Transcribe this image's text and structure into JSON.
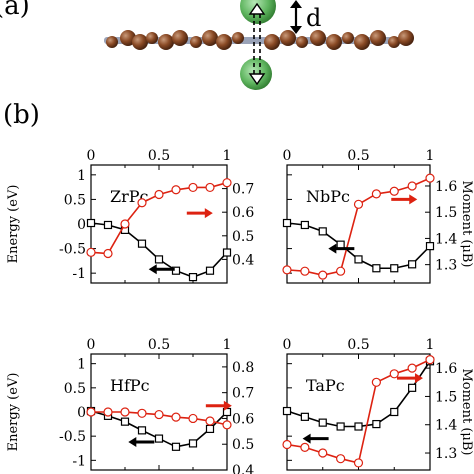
{
  "panel_a": {
    "label": "(a)",
    "distance_label": "d"
  },
  "panel_b": {
    "label": "(b)"
  },
  "chart_data": [
    {
      "type": "line",
      "panel_label": "ZrPc",
      "ylabel_left": "Energy (eV)",
      "ylabel_right": "",
      "xlim": [
        0,
        1
      ],
      "x_ticks": [
        "0",
        "0.5",
        "1"
      ],
      "ylim_left": [
        -1.2,
        1.2
      ],
      "ylim_right": [
        0.3,
        0.8
      ],
      "left_ticks": [
        1,
        0.5,
        0,
        -0.5,
        -1
      ],
      "left_tick_labels": [
        "1",
        "0.5",
        "0",
        "-0.5",
        "-1"
      ],
      "right_ticks": [
        0.7,
        0.6,
        0.5,
        0.4
      ],
      "right_tick_labels": [
        "0.7",
        "0.6",
        "0.5",
        "0.4"
      ],
      "series": [
        {
          "axis": "left",
          "marker": "square",
          "color": "#000000",
          "x": [
            0,
            0.125,
            0.25,
            0.375,
            0.5,
            0.625,
            0.75,
            0.875,
            1.0
          ],
          "values": [
            0.02,
            -0.02,
            -0.12,
            -0.4,
            -0.72,
            -0.95,
            -1.08,
            -0.95,
            -0.58
          ]
        },
        {
          "axis": "right",
          "marker": "circle",
          "color": "#dd2211",
          "x": [
            0,
            0.125,
            0.25,
            0.375,
            0.5,
            0.625,
            0.75,
            0.875,
            1.0
          ],
          "values": [
            0.43,
            0.425,
            0.55,
            0.64,
            0.675,
            0.695,
            0.705,
            0.705,
            0.725
          ]
        }
      ],
      "arrows": [
        {
          "color": "#dd2211",
          "direction": "right",
          "x": 0.8,
          "y_left": 0.22
        },
        {
          "color": "#000000",
          "direction": "left",
          "x": 0.52,
          "y_left": -0.92
        }
      ]
    },
    {
      "type": "line",
      "panel_label": "NbPc",
      "ylabel_left": "",
      "ylabel_right": "Moment (μB)",
      "xlim": [
        0,
        1
      ],
      "x_ticks": [
        "0",
        "0.5",
        "1"
      ],
      "ylim_left": [
        -1.2,
        1.2
      ],
      "ylim_right": [
        1.23,
        1.68
      ],
      "left_ticks": [
        1,
        0.5,
        0,
        -0.5,
        -1
      ],
      "left_tick_labels": [
        "",
        "",
        "",
        "",
        ""
      ],
      "right_ticks": [
        1.6,
        1.5,
        1.4,
        1.3
      ],
      "right_tick_labels": [
        "1.6",
        "1.5",
        "1.4",
        "1.3"
      ],
      "series": [
        {
          "axis": "left",
          "marker": "square",
          "color": "#000000",
          "x": [
            0,
            0.125,
            0.25,
            0.375,
            0.5,
            0.625,
            0.75,
            0.875,
            1.0
          ],
          "values": [
            0.02,
            -0.02,
            -0.15,
            -0.42,
            -0.72,
            -0.9,
            -0.9,
            -0.82,
            -0.45
          ]
        },
        {
          "axis": "right",
          "marker": "circle",
          "color": "#dd2211",
          "x": [
            0,
            0.125,
            0.25,
            0.375,
            0.5,
            0.625,
            0.75,
            0.875,
            1.0
          ],
          "values": [
            1.28,
            1.275,
            1.26,
            1.275,
            1.53,
            1.57,
            1.58,
            1.6,
            1.63
          ]
        }
      ],
      "arrows": [
        {
          "color": "#dd2211",
          "direction": "right",
          "x": 0.82,
          "y_left": 0.5
        },
        {
          "color": "#000000",
          "direction": "left",
          "x": 0.38,
          "y_left": -0.5
        }
      ]
    },
    {
      "type": "line",
      "panel_label": "HfPc",
      "ylabel_left": "Energy (eV)",
      "ylabel_right": "",
      "xlim": [
        0,
        1
      ],
      "x_ticks": [
        "0",
        "0.5",
        "1"
      ],
      "ylim_left": [
        -1.2,
        1.2
      ],
      "ylim_right": [
        0.4,
        0.85
      ],
      "left_ticks": [
        1,
        0.5,
        0,
        -0.5,
        -1
      ],
      "left_tick_labels": [
        "1",
        "0.5",
        "0",
        "-0.5",
        "-1"
      ],
      "right_ticks": [
        0.8,
        0.7,
        0.6,
        0.5,
        0.4
      ],
      "right_tick_labels": [
        "0.8",
        "0.7",
        "0.6",
        "0.5",
        "0.4"
      ],
      "series": [
        {
          "axis": "left",
          "marker": "square",
          "color": "#000000",
          "x": [
            0,
            0.125,
            0.25,
            0.375,
            0.5,
            0.625,
            0.75,
            0.875,
            1.0
          ],
          "values": [
            0.02,
            -0.08,
            -0.2,
            -0.38,
            -0.55,
            -0.72,
            -0.65,
            -0.35,
            0.0
          ]
        },
        {
          "axis": "right",
          "marker": "circle",
          "color": "#dd2211",
          "x": [
            0,
            0.125,
            0.25,
            0.375,
            0.5,
            0.625,
            0.75,
            0.875,
            1.0
          ],
          "values": [
            0.625,
            0.625,
            0.625,
            0.62,
            0.615,
            0.605,
            0.6,
            0.59,
            0.575
          ]
        }
      ],
      "arrows": [
        {
          "color": "#dd2211",
          "direction": "right",
          "x": 0.94,
          "y_left": 0.13
        },
        {
          "color": "#000000",
          "direction": "left",
          "x": 0.37,
          "y_left": -0.62
        }
      ]
    },
    {
      "type": "line",
      "panel_label": "TaPc",
      "ylabel_left": "",
      "ylabel_right": "Moment (μB)",
      "xlim": [
        0,
        1
      ],
      "x_ticks": [
        "0",
        "0.5",
        "1"
      ],
      "ylim_left": [
        -1.2,
        1.2
      ],
      "ylim_right": [
        1.24,
        1.65
      ],
      "left_ticks": [
        1,
        0.5,
        0,
        -0.5,
        -1
      ],
      "left_tick_labels": [
        "",
        "",
        "",
        "",
        ""
      ],
      "right_ticks": [
        1.6,
        1.5,
        1.4,
        1.3
      ],
      "right_tick_labels": [
        "1.6",
        "1.5",
        "1.4",
        "1.3"
      ],
      "series": [
        {
          "axis": "left",
          "marker": "square",
          "color": "#000000",
          "x": [
            0,
            0.125,
            0.25,
            0.375,
            0.5,
            0.625,
            0.75,
            0.875,
            1.0
          ],
          "values": [
            0.02,
            -0.1,
            -0.22,
            -0.3,
            -0.3,
            -0.25,
            0.0,
            0.5,
            1.05
          ]
        },
        {
          "axis": "right",
          "marker": "circle",
          "color": "#dd2211",
          "x": [
            0,
            0.125,
            0.25,
            0.375,
            0.5,
            0.625,
            0.75,
            0.875,
            1.0
          ],
          "values": [
            1.33,
            1.32,
            1.3,
            1.28,
            1.265,
            1.55,
            1.58,
            1.6,
            1.63
          ]
        }
      ],
      "arrows": [
        {
          "color": "#dd2211",
          "direction": "right",
          "x": 0.86,
          "y_left": 0.7
        },
        {
          "color": "#000000",
          "direction": "left",
          "x": 0.2,
          "y_left": -0.55
        }
      ]
    }
  ]
}
